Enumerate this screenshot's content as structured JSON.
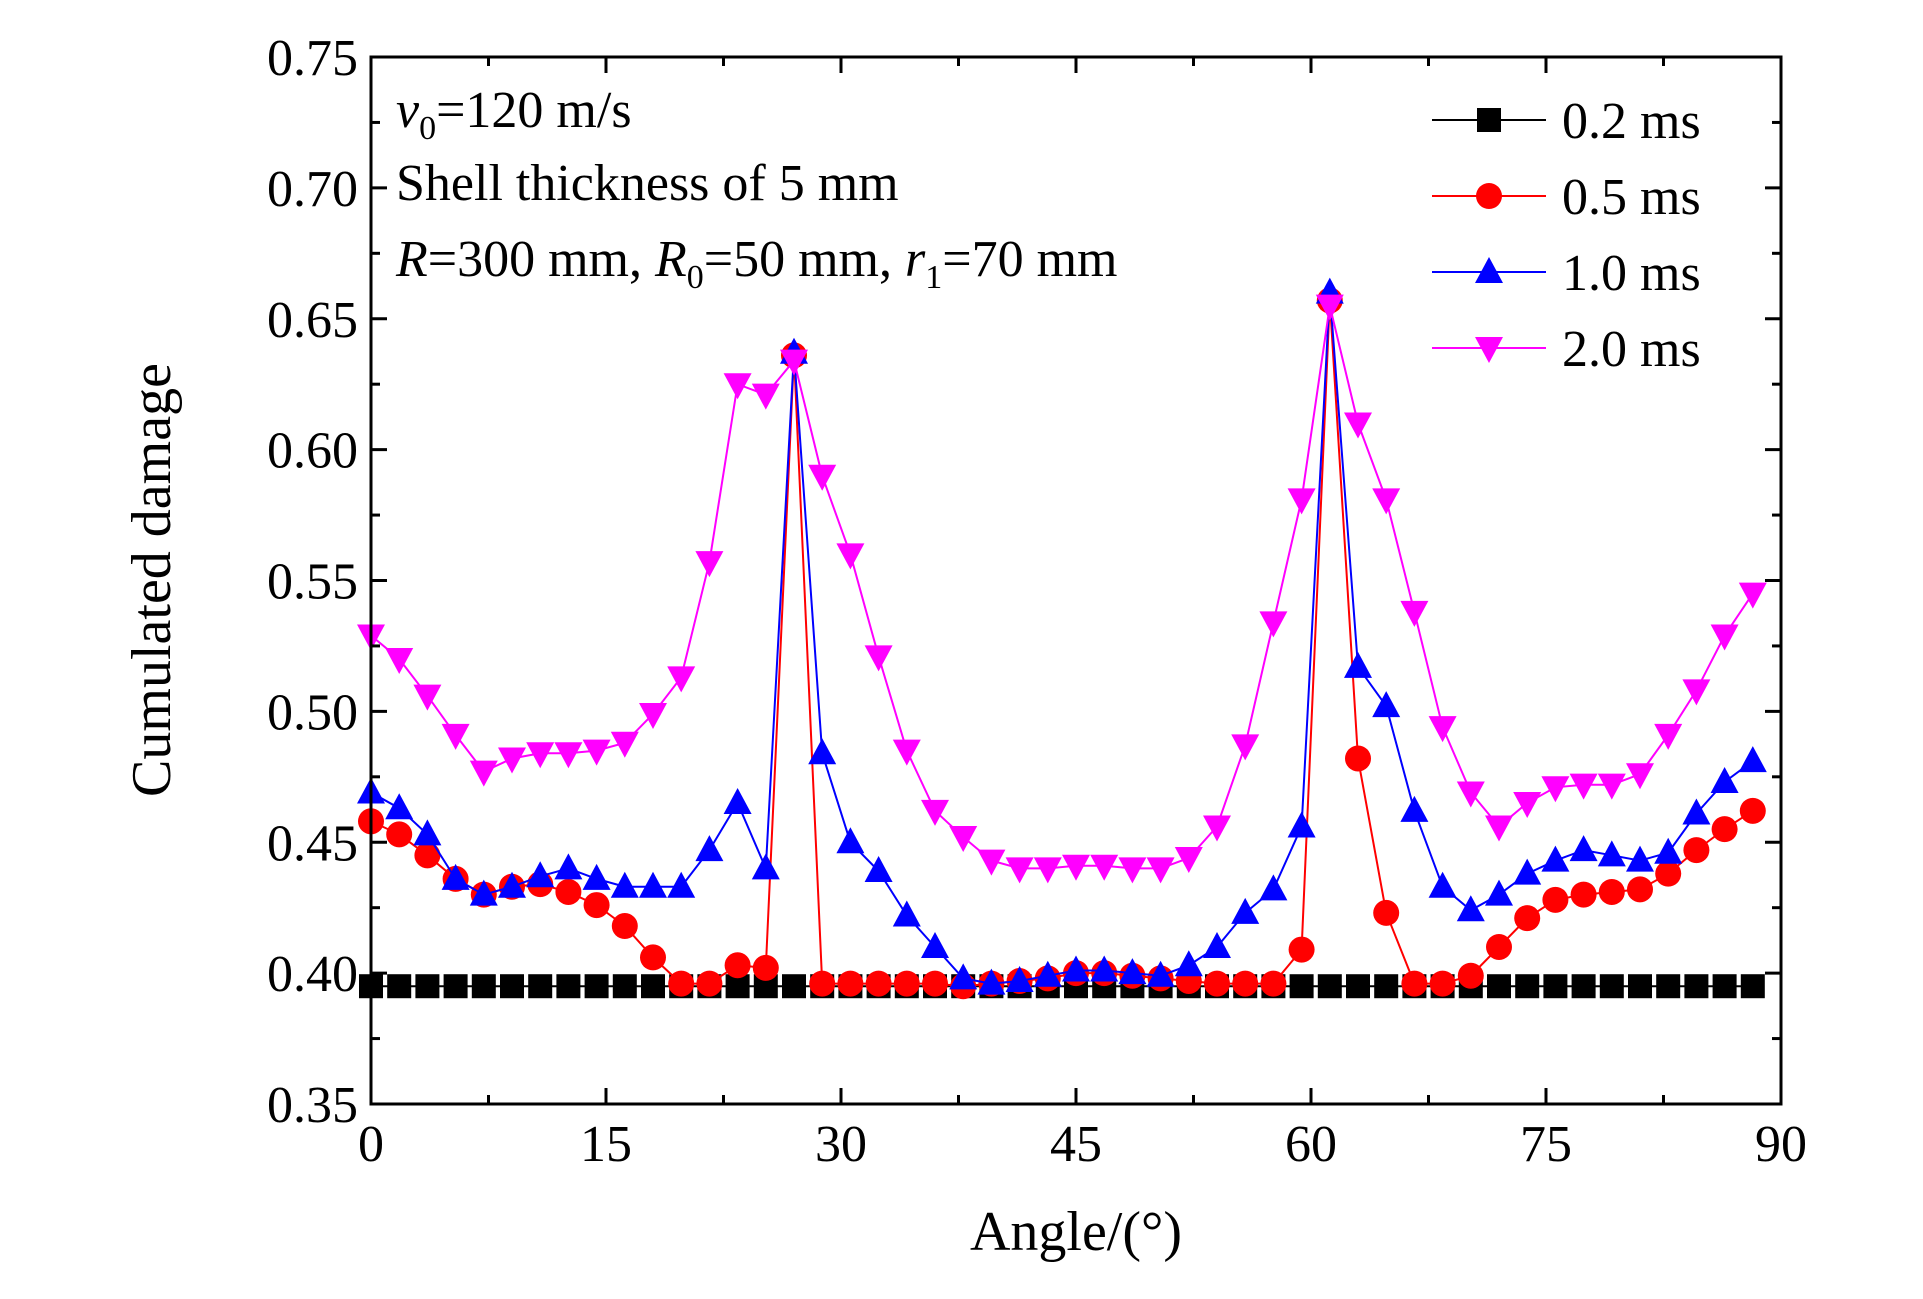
{
  "chart_data": {
    "type": "line",
    "xlabel": "Angle/(°)",
    "ylabel": "Cumulated damage",
    "xlim": [
      0,
      90
    ],
    "ylim": [
      0.35,
      0.75
    ],
    "xticks": [
      "0",
      "15",
      "30",
      "45",
      "60",
      "75",
      "90"
    ],
    "yticks": [
      "0.35",
      "0.40",
      "0.45",
      "0.50",
      "0.55",
      "0.60",
      "0.65",
      "0.70",
      "0.75"
    ],
    "grid": false,
    "legend_position": "top-right",
    "annotations": [
      {
        "parts": [
          {
            "t": "v",
            "italic": true
          },
          {
            "t": "0",
            "sub": true
          },
          {
            "t": "=120 m/s"
          }
        ]
      },
      {
        "parts": [
          {
            "t": "Shell thickness of 5 mm"
          }
        ]
      },
      {
        "parts": [
          {
            "t": "R",
            "italic": true
          },
          {
            "t": "=300 mm, "
          },
          {
            "t": "R",
            "italic": true
          },
          {
            "t": "0",
            "sub": true
          },
          {
            "t": "=50 mm, "
          },
          {
            "t": "r",
            "italic": true
          },
          {
            "t": "1",
            "sub": true
          },
          {
            "t": "=70 mm"
          }
        ]
      }
    ],
    "x": [
      0,
      1.8,
      3.6,
      5.4,
      7.2,
      9.0,
      10.8,
      12.6,
      14.4,
      16.2,
      18.0,
      19.8,
      21.6,
      23.4,
      25.2,
      27.0,
      28.8,
      30.6,
      32.4,
      34.2,
      36.0,
      37.8,
      39.6,
      41.4,
      43.2,
      45.0,
      46.8,
      48.6,
      50.4,
      52.2,
      54.0,
      55.8,
      57.6,
      59.4,
      61.2,
      63.0,
      64.8,
      66.6,
      68.4,
      70.2,
      72.0,
      73.8,
      75.6,
      77.4,
      79.2,
      81.0,
      82.8,
      84.6,
      86.4,
      88.2
    ],
    "series": [
      {
        "name": "0.2 ms",
        "color": "#000000",
        "marker": "square",
        "values": [
          0.395,
          0.395,
          0.395,
          0.395,
          0.395,
          0.395,
          0.395,
          0.395,
          0.395,
          0.395,
          0.395,
          0.395,
          0.395,
          0.395,
          0.395,
          0.395,
          0.395,
          0.395,
          0.395,
          0.395,
          0.395,
          0.395,
          0.395,
          0.395,
          0.395,
          0.395,
          0.395,
          0.395,
          0.395,
          0.395,
          0.395,
          0.395,
          0.395,
          0.395,
          0.395,
          0.395,
          0.395,
          0.395,
          0.395,
          0.395,
          0.395,
          0.395,
          0.395,
          0.395,
          0.395,
          0.395,
          0.395,
          0.395,
          0.395,
          0.395
        ]
      },
      {
        "name": "0.5 ms",
        "color": "#ff0000",
        "marker": "circle",
        "values": [
          0.458,
          0.453,
          0.445,
          0.436,
          0.43,
          0.433,
          0.434,
          0.431,
          0.426,
          0.418,
          0.406,
          0.396,
          0.396,
          0.403,
          0.402,
          0.636,
          0.396,
          0.396,
          0.396,
          0.396,
          0.396,
          0.395,
          0.396,
          0.397,
          0.398,
          0.4,
          0.4,
          0.399,
          0.398,
          0.397,
          0.396,
          0.396,
          0.396,
          0.409,
          0.657,
          0.482,
          0.423,
          0.396,
          0.396,
          0.399,
          0.41,
          0.421,
          0.428,
          0.43,
          0.431,
          0.432,
          0.438,
          0.447,
          0.455,
          0.462
        ]
      },
      {
        "name": "1.0 ms",
        "color": "#0000ff",
        "marker": "triangle-up",
        "values": [
          0.469,
          0.463,
          0.453,
          0.436,
          0.43,
          0.433,
          0.437,
          0.44,
          0.436,
          0.433,
          0.433,
          0.433,
          0.447,
          0.465,
          0.44,
          0.637,
          0.484,
          0.45,
          0.439,
          0.422,
          0.41,
          0.398,
          0.396,
          0.397,
          0.399,
          0.401,
          0.401,
          0.4,
          0.399,
          0.403,
          0.41,
          0.423,
          0.432,
          0.456,
          0.66,
          0.517,
          0.502,
          0.462,
          0.433,
          0.424,
          0.43,
          0.438,
          0.443,
          0.447,
          0.445,
          0.443,
          0.446,
          0.461,
          0.473,
          0.481
        ]
      },
      {
        "name": "2.0 ms",
        "color": "#ff00ff",
        "marker": "triangle-down",
        "values": [
          0.529,
          0.52,
          0.506,
          0.491,
          0.477,
          0.482,
          0.484,
          0.484,
          0.485,
          0.488,
          0.499,
          0.513,
          0.557,
          0.625,
          0.621,
          0.634,
          0.59,
          0.56,
          0.521,
          0.485,
          0.462,
          0.452,
          0.443,
          0.44,
          0.44,
          0.441,
          0.441,
          0.44,
          0.44,
          0.444,
          0.456,
          0.487,
          0.534,
          0.581,
          0.655,
          0.61,
          0.581,
          0.538,
          0.494,
          0.469,
          0.456,
          0.465,
          0.471,
          0.472,
          0.472,
          0.476,
          0.491,
          0.508,
          0.529,
          0.545
        ]
      }
    ]
  }
}
